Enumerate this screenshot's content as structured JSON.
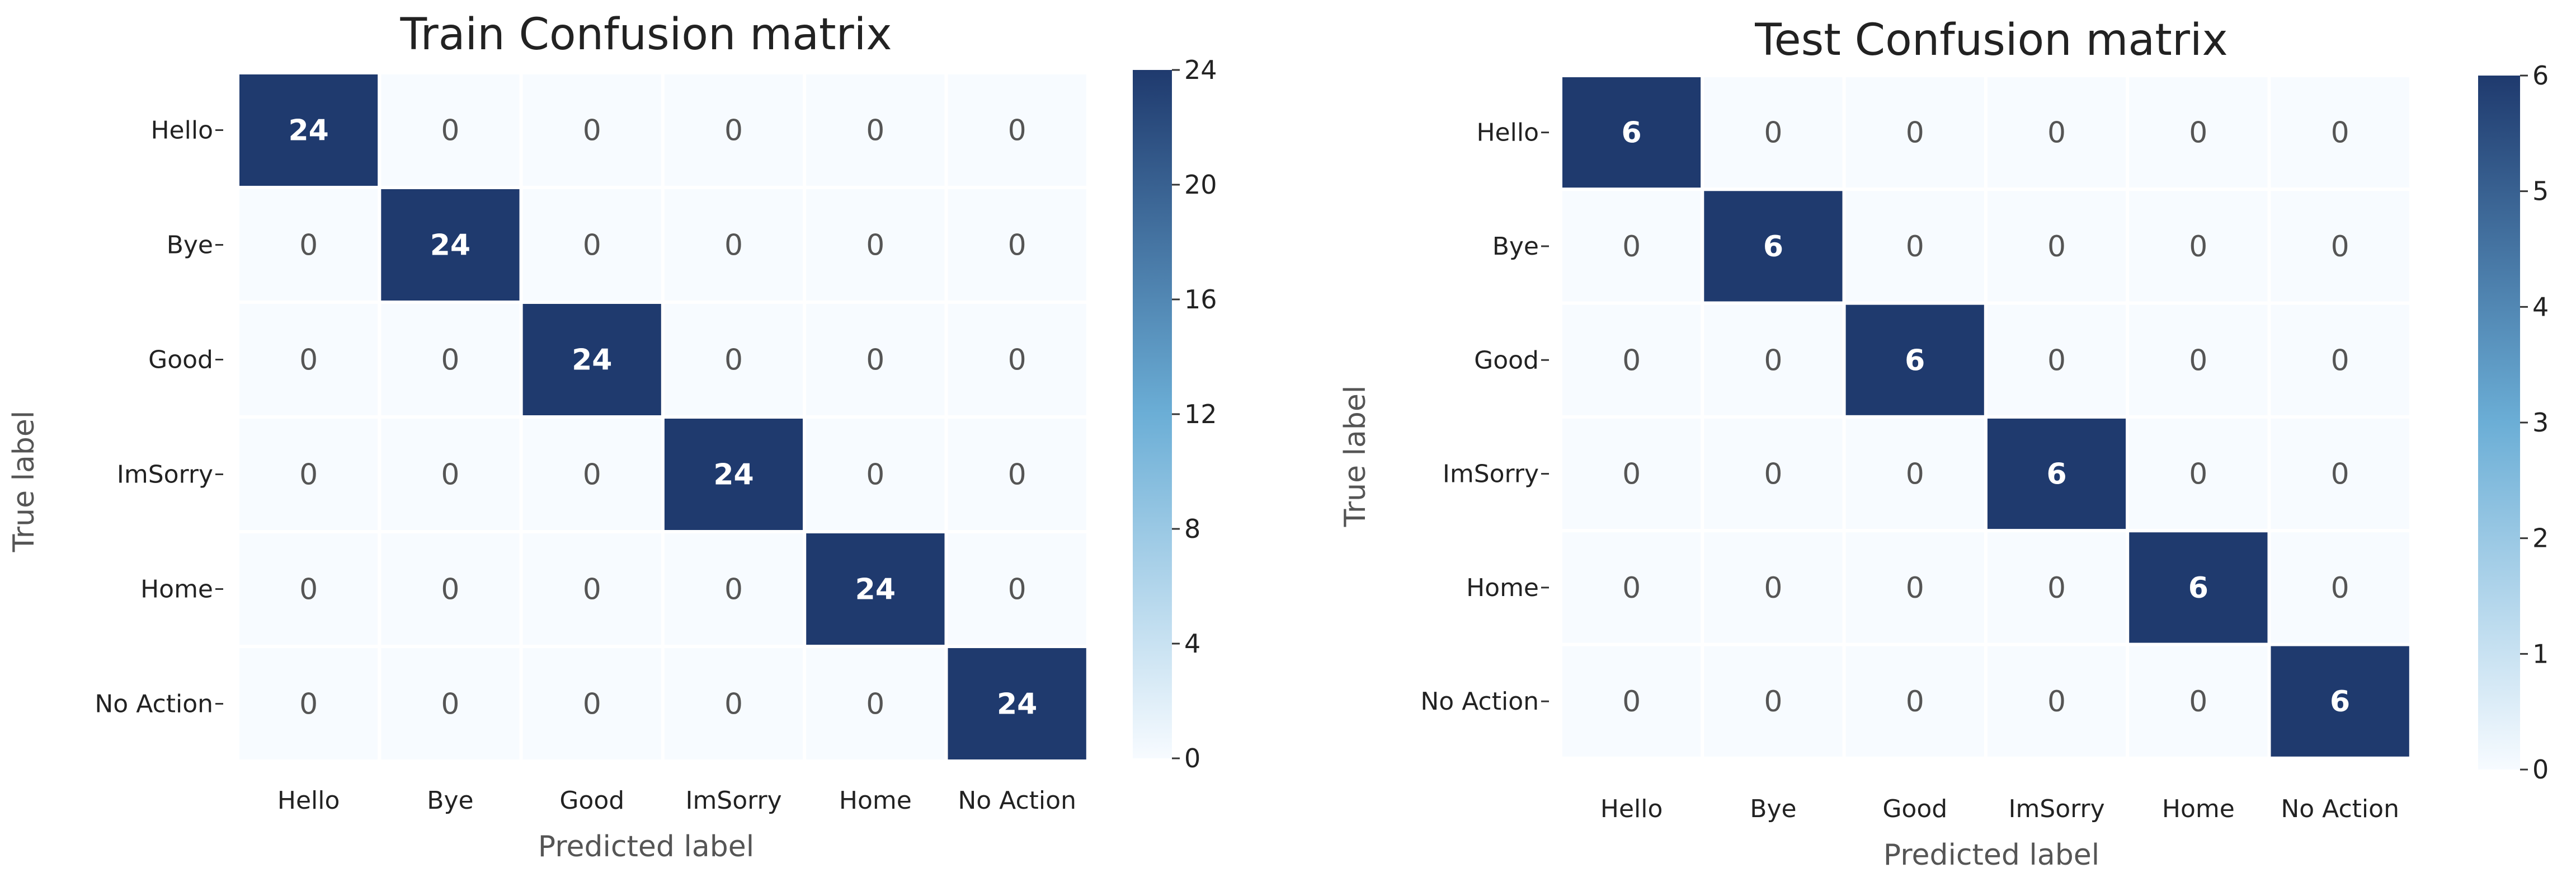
{
  "chart_data": [
    {
      "type": "heatmap",
      "title": "Train Confusion matrix",
      "xlabel": "Predicted label",
      "ylabel": "True label",
      "x_categories": [
        "Hello",
        "Bye",
        "Good",
        "ImSorry",
        "Home",
        "No Action"
      ],
      "y_categories": [
        "Hello",
        "Bye",
        "Good",
        "ImSorry",
        "Home",
        "No Action"
      ],
      "values": [
        [
          24,
          0,
          0,
          0,
          0,
          0
        ],
        [
          0,
          24,
          0,
          0,
          0,
          0
        ],
        [
          0,
          0,
          24,
          0,
          0,
          0
        ],
        [
          0,
          0,
          0,
          24,
          0,
          0
        ],
        [
          0,
          0,
          0,
          0,
          24,
          0
        ],
        [
          0,
          0,
          0,
          0,
          0,
          24
        ]
      ],
      "colorbar": {
        "range": [
          0,
          24
        ],
        "ticks": [
          "0",
          "4",
          "8",
          "12",
          "16",
          "20",
          "24"
        ],
        "colormap": "Blues"
      }
    },
    {
      "type": "heatmap",
      "title": "Test Confusion matrix",
      "xlabel": "Predicted label",
      "ylabel": "True label",
      "x_categories": [
        "Hello",
        "Bye",
        "Good",
        "ImSorry",
        "Home",
        "No Action"
      ],
      "y_categories": [
        "Hello",
        "Bye",
        "Good",
        "ImSorry",
        "Home",
        "No Action"
      ],
      "values": [
        [
          6,
          0,
          0,
          0,
          0,
          0
        ],
        [
          0,
          6,
          0,
          0,
          0,
          0
        ],
        [
          0,
          0,
          6,
          0,
          0,
          0
        ],
        [
          0,
          0,
          0,
          6,
          0,
          0
        ],
        [
          0,
          0,
          0,
          0,
          6,
          0
        ],
        [
          0,
          0,
          0,
          0,
          0,
          6
        ]
      ],
      "colorbar": {
        "range": [
          0,
          6
        ],
        "ticks": [
          "0",
          "1",
          "2",
          "3",
          "4",
          "5",
          "6"
        ],
        "colormap": "Blues"
      }
    }
  ],
  "colors": {
    "low": "#f7fbff",
    "mid": "#6baed6",
    "high": "#1f3a6e",
    "text_dark": "#555555",
    "text_light": "#ffffff",
    "label": "#222222"
  }
}
